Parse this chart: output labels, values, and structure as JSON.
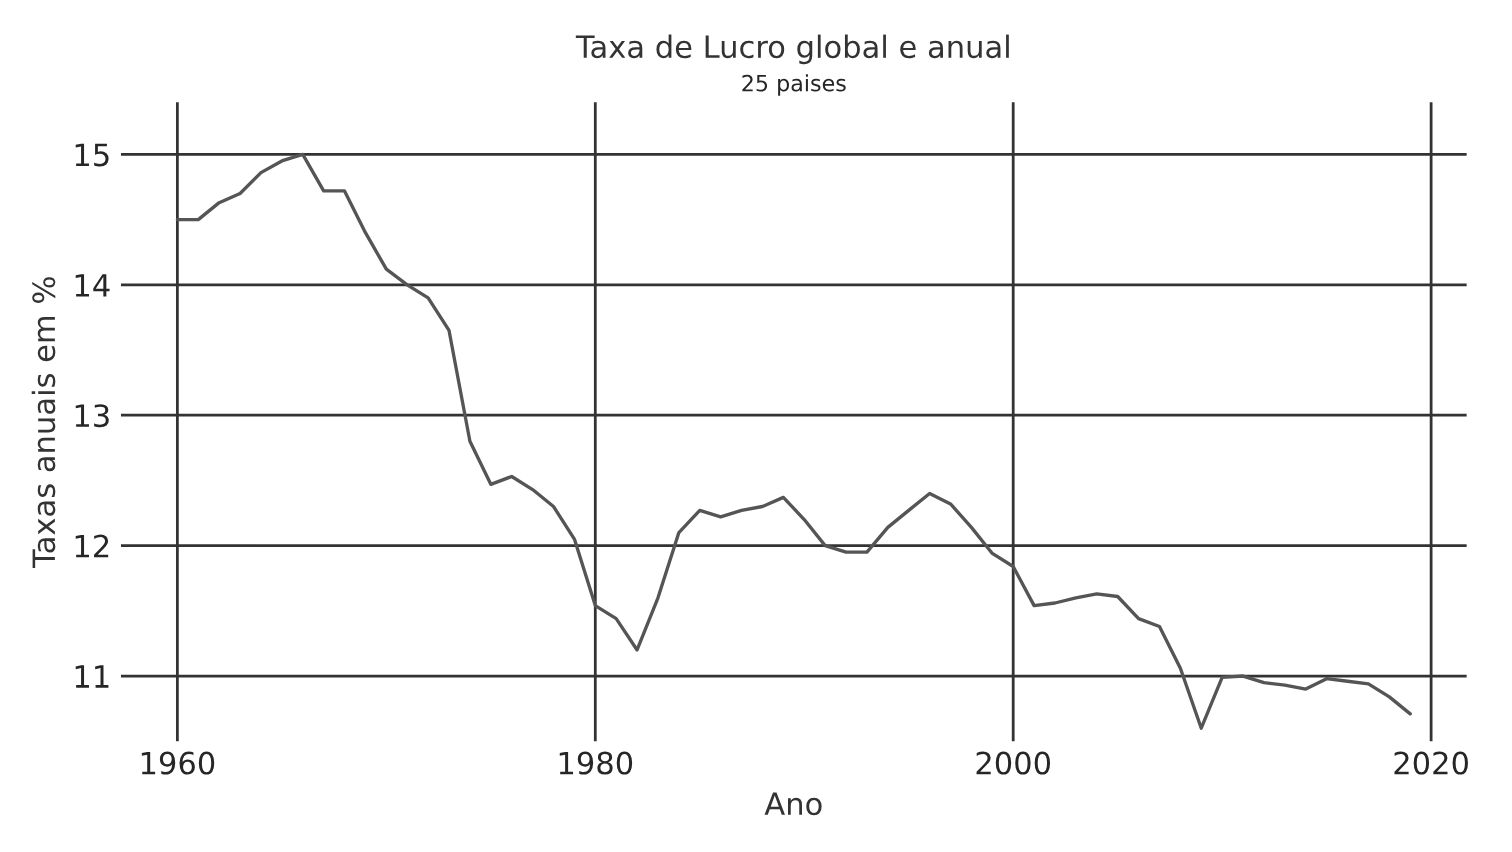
{
  "chart_data": {
    "type": "line",
    "title": "Taxa de Lucro global e anual",
    "subtitle": "25 paises",
    "xlabel": "Ano",
    "ylabel": "Taxas anuais em %",
    "x": [
      1960,
      1961,
      1962,
      1963,
      1964,
      1965,
      1966,
      1967,
      1968,
      1969,
      1970,
      1971,
      1972,
      1973,
      1974,
      1975,
      1976,
      1977,
      1978,
      1979,
      1980,
      1981,
      1982,
      1983,
      1984,
      1985,
      1986,
      1987,
      1988,
      1989,
      1990,
      1991,
      1992,
      1993,
      1994,
      1995,
      1996,
      1997,
      1998,
      1999,
      2000,
      2001,
      2002,
      2003,
      2004,
      2005,
      2006,
      2007,
      2008,
      2009,
      2010,
      2011,
      2012,
      2013,
      2014,
      2015,
      2016,
      2017,
      2018,
      2019
    ],
    "series": [
      {
        "color": "#555555",
        "values": [
          14.5,
          14.5,
          14.63,
          14.7,
          14.86,
          14.95,
          15.0,
          14.72,
          14.72,
          14.4,
          14.12,
          14.0,
          13.9,
          13.65,
          12.8,
          12.47,
          12.53,
          12.43,
          12.3,
          12.05,
          11.54,
          11.44,
          11.2,
          11.6,
          12.1,
          12.27,
          12.22,
          12.27,
          12.3,
          12.37,
          12.2,
          12.0,
          11.95,
          11.95,
          12.14,
          12.27,
          12.4,
          12.32,
          12.14,
          11.94,
          11.84,
          11.54,
          11.56,
          11.6,
          11.63,
          11.61,
          11.44,
          11.38,
          11.06,
          10.6,
          10.99,
          11.0,
          10.95,
          10.93,
          10.9,
          10.98,
          10.96,
          10.94,
          10.84,
          10.71
        ]
      }
    ],
    "xlim": [
      1957.3,
      2021.7
    ],
    "ylim": [
      10.5,
      15.4
    ],
    "xticks": [
      1960,
      1980,
      2000,
      2020
    ],
    "yticks": [
      11,
      12,
      13,
      14,
      15
    ],
    "grid": true,
    "legend": false
  }
}
